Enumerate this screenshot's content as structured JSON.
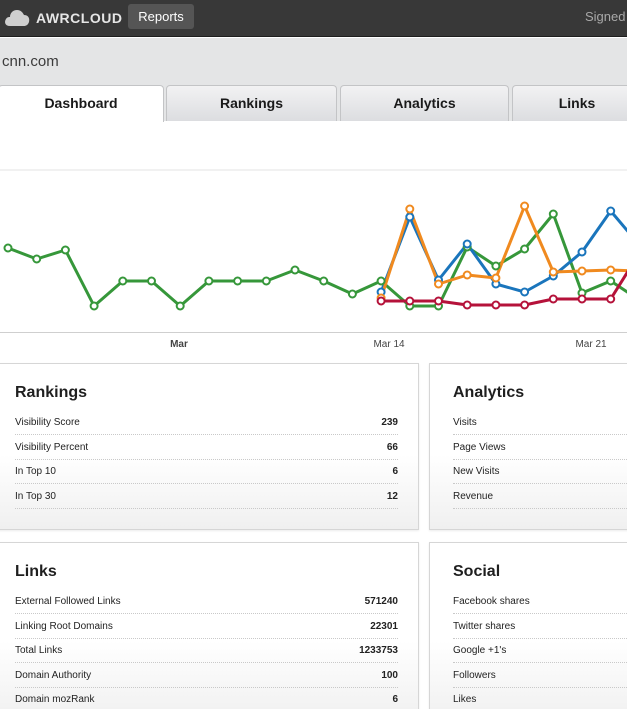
{
  "topbar": {
    "brand": "AWRCLOUD",
    "reports_label": "Reports",
    "user_text": "Signed"
  },
  "site": {
    "domain": "cnn.com"
  },
  "tabs": [
    {
      "label": "Dashboard",
      "active": true
    },
    {
      "label": "Rankings",
      "active": false
    },
    {
      "label": "Analytics",
      "active": false
    },
    {
      "label": "Links",
      "active": false
    }
  ],
  "chart_data": {
    "type": "line",
    "x_tick_labels": [
      "Mar",
      "Mar 14",
      "Mar 21"
    ],
    "x_day_of_march": [
      1,
      2,
      3,
      4,
      5,
      6,
      7,
      8,
      9,
      10,
      11,
      12,
      13,
      14,
      15,
      16,
      17,
      18,
      19,
      20,
      21,
      22,
      23
    ],
    "series": [
      {
        "color": "#36973a",
        "values": [
          85,
          74,
          83,
          27,
          52,
          52,
          27,
          52,
          52,
          52,
          63,
          52,
          39,
          52,
          27,
          27,
          86,
          67,
          84,
          119,
          40,
          52,
          33
        ]
      },
      {
        "color": "#1a75bc",
        "values": [
          null,
          null,
          null,
          null,
          null,
          null,
          null,
          null,
          null,
          null,
          null,
          null,
          null,
          41,
          116,
          53,
          89,
          49,
          41,
          57,
          81,
          122,
          88
        ]
      },
      {
        "color": "#f08a1f",
        "values": [
          null,
          null,
          null,
          null,
          null,
          null,
          null,
          null,
          null,
          null,
          null,
          null,
          null,
          35,
          124,
          49,
          58,
          55,
          127,
          61,
          62,
          63,
          62
        ]
      },
      {
        "color": "#b5123a",
        "values": [
          null,
          null,
          null,
          null,
          null,
          null,
          null,
          null,
          null,
          null,
          null,
          null,
          null,
          32,
          32,
          32,
          28,
          28,
          28,
          34,
          34,
          34,
          80
        ]
      }
    ]
  },
  "cards": {
    "rankings": {
      "title": "Rankings",
      "rows": [
        {
          "label": "Visibility Score",
          "value": "239"
        },
        {
          "label": "Visibility Percent",
          "value": "66"
        },
        {
          "label": "In Top 10",
          "value": "6"
        },
        {
          "label": "In Top 30",
          "value": "12"
        }
      ]
    },
    "analytics": {
      "title": "Analytics",
      "rows": [
        {
          "label": "Visits",
          "value": ""
        },
        {
          "label": "Page Views",
          "value": ""
        },
        {
          "label": "New Visits",
          "value": ""
        },
        {
          "label": "Revenue",
          "value": ""
        }
      ]
    },
    "links": {
      "title": "Links",
      "rows": [
        {
          "label": "External Followed Links",
          "value": "571240"
        },
        {
          "label": "Linking Root Domains",
          "value": "22301"
        },
        {
          "label": "Total Links",
          "value": "1233753"
        },
        {
          "label": "Domain Authority",
          "value": "100"
        },
        {
          "label": "Domain mozRank",
          "value": "6"
        }
      ]
    },
    "social": {
      "title": "Social",
      "rows": [
        {
          "label": "Facebook shares",
          "value": ""
        },
        {
          "label": "Twitter shares",
          "value": ""
        },
        {
          "label": "Google +1's",
          "value": ""
        },
        {
          "label": "Followers",
          "value": ""
        },
        {
          "label": "Likes",
          "value": ""
        }
      ]
    }
  }
}
